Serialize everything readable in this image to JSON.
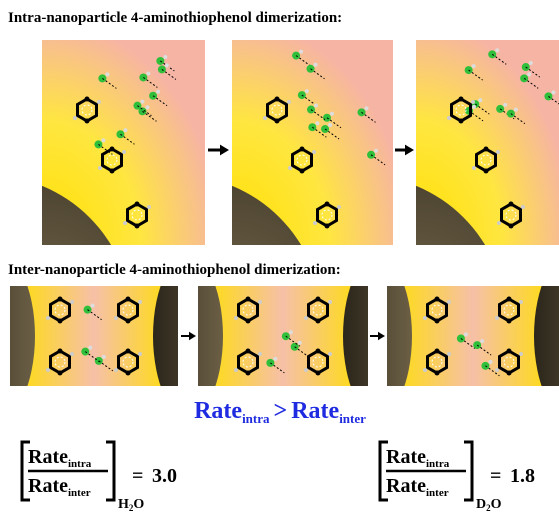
{
  "intra_section": {
    "title": "Intra-nanoparticle 4-aminothiophenol dimerization:"
  },
  "inter_section": {
    "title": "Inter-nanoparticle 4-aminothiophenol dimerization:"
  },
  "comparison": {
    "left": "Rate",
    "left_sub": "intra",
    "operator": ">",
    "right": "Rate",
    "right_sub": "inter"
  },
  "ratios": [
    {
      "numerator": "Rate",
      "numerator_sub": "intra",
      "denominator": "Rate",
      "denominator_sub": "inter",
      "solvent": [
        "H",
        "2",
        "O"
      ],
      "equals": "=",
      "value": "3.0"
    },
    {
      "numerator": "Rate",
      "numerator_sub": "intra",
      "denominator": "Rate",
      "denominator_sub": "inter",
      "solvent": [
        "D",
        "2",
        "O"
      ],
      "equals": "=",
      "value": "1.8"
    }
  ]
}
